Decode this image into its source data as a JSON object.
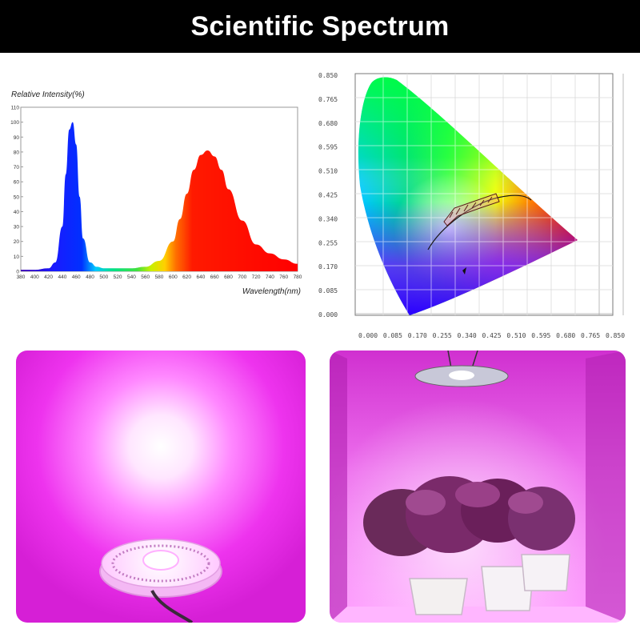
{
  "banner": {
    "title": "Scientific Spectrum",
    "bg": "#000000",
    "fg": "#ffffff"
  },
  "spectrum": {
    "ylabel": "Relative Intensity(%)",
    "xlabel": "Wavelength(nm)",
    "y_ticks": [
      "0",
      "10",
      "20",
      "30",
      "40",
      "50",
      "60",
      "70",
      "80",
      "90",
      "100",
      "110"
    ],
    "x_ticks": [
      "380",
      "400",
      "420",
      "440",
      "460",
      "480",
      "500",
      "520",
      "540",
      "560",
      "580",
      "600",
      "620",
      "640",
      "660",
      "680",
      "700",
      "720",
      "740",
      "760",
      "780"
    ]
  },
  "chart_data": {
    "type": "area",
    "xlabel": "Wavelength(nm)",
    "ylabel": "Relative Intensity(%)",
    "xlim": [
      380,
      780
    ],
    "ylim": [
      0,
      110
    ],
    "x": [
      380,
      400,
      420,
      430,
      440,
      445,
      450,
      455,
      460,
      465,
      470,
      480,
      490,
      500,
      520,
      540,
      560,
      580,
      600,
      610,
      620,
      630,
      640,
      650,
      660,
      670,
      680,
      700,
      720,
      740,
      760,
      780
    ],
    "values": [
      1,
      1,
      2,
      6,
      30,
      65,
      95,
      100,
      85,
      50,
      22,
      6,
      3,
      2,
      2,
      2,
      3,
      7,
      20,
      35,
      52,
      68,
      78,
      81,
      77,
      68,
      55,
      34,
      18,
      12,
      8,
      5
    ],
    "grid": false
  },
  "cie": {
    "y_ticks": [
      "0.000",
      "0.085",
      "0.170",
      "0.255",
      "0.340",
      "0.425",
      "0.510",
      "0.595",
      "0.680",
      "0.765",
      "0.850"
    ],
    "x_ticks": [
      "0.000",
      "0.085",
      "0.170",
      "0.255",
      "0.340",
      "0.425",
      "0.510",
      "0.595",
      "0.680",
      "0.765",
      "0.850"
    ]
  },
  "photos": {
    "lamp_glow": "#ff66ff",
    "tent_glow": "#e64ce6"
  }
}
